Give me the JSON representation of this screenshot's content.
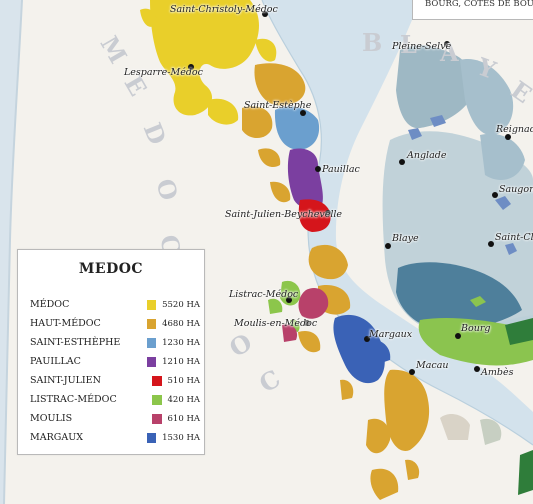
{
  "header_box": {
    "text": "BOURG, CÔTES DE BOU"
  },
  "regions": [
    {
      "name": "medoc",
      "letters": [
        "M",
        "E",
        "D",
        "O",
        "C"
      ]
    },
    {
      "name": "medoc-south",
      "letters": [
        "O",
        "C"
      ]
    },
    {
      "name": "blaye",
      "letters": [
        "B",
        "L",
        "A",
        "Y",
        "E"
      ]
    }
  ],
  "towns": {
    "saint_christoly": "Saint-Christoly-Médoc",
    "lesparre": "Lesparre-Médoc",
    "saint_estephe": "Saint-Estèphe",
    "pauillac": "Pauillac",
    "saint_julien": "Saint-Julien-Beychevelle",
    "listrac": "Listrac-Médoc",
    "moulis": "Moulis-en-Médoc",
    "margaux": "Margaux",
    "macau": "Macau",
    "pleine_selve": "Pleine-Selve",
    "reignac": "Reignac",
    "anglade": "Anglade",
    "saugon": "Saugon",
    "blaye": "Blaye",
    "saint_cl": "Saint-Cl",
    "bourg": "Bourg",
    "ambes": "Ambès"
  },
  "legend": {
    "title": "MEDOC",
    "items": [
      {
        "name": "MÉDOC",
        "color": "#e9cf2a",
        "area": "5520 HA"
      },
      {
        "name": "HAUT-MÉDOC",
        "color": "#d9a430",
        "area": "4680 HA"
      },
      {
        "name": "SAINT-ESTHÈPHE",
        "color": "#6b9fce",
        "area": "1230 HA"
      },
      {
        "name": "PAUILLAC",
        "color": "#7b3fa0",
        "area": "1210 HA"
      },
      {
        "name": "SAINT-JULIEN",
        "color": "#d5151b",
        "area": "510 HA"
      },
      {
        "name": "LISTRAC-MÉDOC",
        "color": "#8cc64b",
        "area": "420 HA"
      },
      {
        "name": "MOULIS",
        "color": "#b8416a",
        "area": "610 HA"
      },
      {
        "name": "MARGAUX",
        "color": "#3a62b6",
        "area": "1530 HA"
      }
    ]
  }
}
